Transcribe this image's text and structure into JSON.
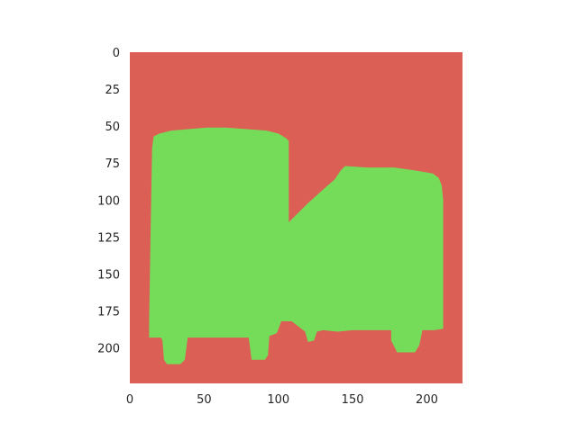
{
  "chart_data": {
    "type": "heatmap",
    "title": "",
    "xlabel": "",
    "ylabel": "",
    "xlim": [
      0,
      224
    ],
    "ylim": [
      224,
      0
    ],
    "grid": false,
    "classes": [
      {
        "name": "background",
        "color": "#dc5f55"
      },
      {
        "name": "foreground",
        "color": "#75dc5a"
      }
    ],
    "x_ticks": [
      0,
      50,
      100,
      150,
      200
    ],
    "y_ticks": [
      0,
      25,
      50,
      75,
      100,
      125,
      150,
      175,
      200
    ],
    "foreground_region": [
      [
        16,
        57
      ],
      [
        20,
        55
      ],
      [
        28,
        53
      ],
      [
        40,
        52
      ],
      [
        52,
        51
      ],
      [
        65,
        51
      ],
      [
        78,
        52
      ],
      [
        92,
        53
      ],
      [
        100,
        55
      ],
      [
        105,
        58
      ],
      [
        107,
        60
      ],
      [
        107,
        115
      ],
      [
        120,
        102
      ],
      [
        130,
        93
      ],
      [
        138,
        86
      ],
      [
        142,
        80
      ],
      [
        145,
        77
      ],
      [
        160,
        78
      ],
      [
        178,
        78
      ],
      [
        192,
        80
      ],
      [
        204,
        82
      ],
      [
        208,
        85
      ],
      [
        210,
        90
      ],
      [
        211,
        100
      ],
      [
        211,
        187
      ],
      [
        205,
        188
      ],
      [
        197,
        188
      ],
      [
        195,
        198
      ],
      [
        192,
        203
      ],
      [
        180,
        203
      ],
      [
        176,
        195
      ],
      [
        176,
        188
      ],
      [
        150,
        188
      ],
      [
        140,
        189
      ],
      [
        130,
        188
      ],
      [
        126,
        189
      ],
      [
        124,
        195
      ],
      [
        120,
        196
      ],
      [
        118,
        189
      ],
      [
        109,
        182
      ],
      [
        102,
        182
      ],
      [
        99,
        190
      ],
      [
        94,
        192
      ],
      [
        93,
        205
      ],
      [
        91,
        208
      ],
      [
        82,
        208
      ],
      [
        81,
        200
      ],
      [
        80,
        193
      ],
      [
        39,
        193
      ],
      [
        37,
        208
      ],
      [
        34,
        211
      ],
      [
        25,
        211
      ],
      [
        23,
        208
      ],
      [
        22,
        195
      ],
      [
        21,
        193
      ],
      [
        13,
        193
      ],
      [
        13,
        182
      ],
      [
        14,
        120
      ],
      [
        15,
        65
      ]
    ]
  }
}
